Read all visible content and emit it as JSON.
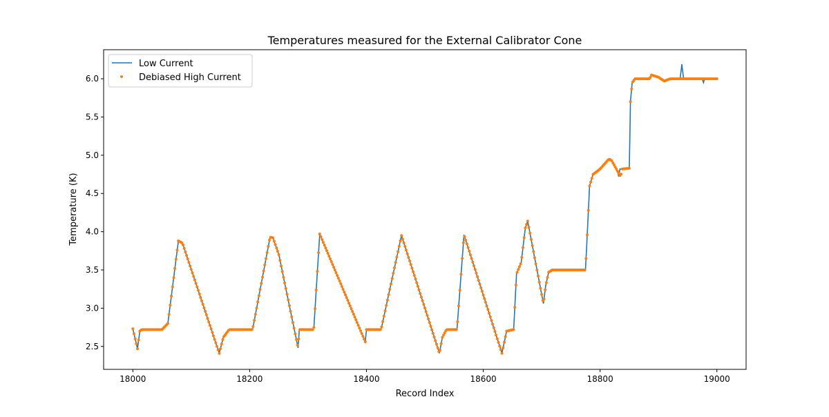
{
  "chart_data": {
    "type": "line",
    "title": "Temperatures measured for the External Calibrator Cone",
    "xlabel": "Record Index",
    "ylabel": "Temperature (K)",
    "xlim": [
      17950,
      19050
    ],
    "ylim": [
      2.2,
      6.38
    ],
    "xticks": [
      18000,
      18200,
      18400,
      18600,
      18800,
      19000
    ],
    "yticks": [
      2.5,
      3.0,
      3.5,
      4.0,
      4.5,
      5.0,
      5.5,
      6.0
    ],
    "ytick_labels": [
      "2.5",
      "3.0",
      "3.5",
      "4.0",
      "4.5",
      "5.0",
      "5.5",
      "6.0"
    ],
    "grid": false,
    "legend": {
      "placement": "top-left",
      "entries": [
        "Low Current",
        "Debiased High Current"
      ]
    },
    "series": [
      {
        "name": "Low Current",
        "style": "line",
        "color": "#1f77b4",
        "x": [
          18000,
          18008,
          18012,
          18015,
          18050,
          18060,
          18078,
          18085,
          18148,
          18155,
          18165,
          18205,
          18235,
          18240,
          18250,
          18283,
          18285,
          18308,
          18310,
          18320,
          18398,
          18400,
          18425,
          18460,
          18525,
          18530,
          18537,
          18555,
          18567,
          18632,
          18640,
          18652,
          18657,
          18665,
          18672,
          18676,
          18703,
          18707,
          18712,
          18718,
          18775,
          18777,
          18782,
          18788,
          18800,
          18815,
          18820,
          18830,
          18832,
          18834,
          18838,
          18850,
          18852,
          18855,
          18860,
          18885,
          18888,
          18900,
          18910,
          18920,
          18937,
          18940,
          18943,
          18975,
          18977,
          18979,
          19000
        ],
        "y": [
          2.73,
          2.47,
          2.7,
          2.72,
          2.72,
          2.8,
          3.88,
          3.85,
          2.41,
          2.62,
          2.72,
          2.72,
          3.93,
          3.92,
          3.7,
          2.48,
          2.72,
          2.72,
          2.75,
          3.97,
          2.56,
          2.72,
          2.72,
          3.95,
          2.41,
          2.62,
          2.72,
          2.72,
          3.96,
          2.41,
          2.7,
          2.72,
          3.45,
          3.6,
          4.05,
          4.14,
          3.06,
          3.3,
          3.47,
          3.5,
          3.5,
          3.8,
          4.6,
          4.75,
          4.82,
          4.95,
          4.93,
          4.78,
          4.72,
          4.82,
          4.82,
          4.83,
          5.7,
          5.95,
          6.0,
          6.0,
          6.05,
          6.02,
          5.97,
          6.0,
          6.0,
          6.19,
          6.0,
          6.0,
          5.95,
          6.0,
          6.0
        ]
      },
      {
        "name": "Debiased High Current",
        "style": "scatter",
        "color": "#ff7f0e",
        "x": [
          18000,
          18008,
          18012,
          18015,
          18050,
          18060,
          18078,
          18085,
          18148,
          18155,
          18165,
          18205,
          18235,
          18240,
          18250,
          18283,
          18285,
          18308,
          18310,
          18320,
          18398,
          18400,
          18425,
          18460,
          18525,
          18530,
          18537,
          18555,
          18567,
          18632,
          18640,
          18652,
          18657,
          18665,
          18672,
          18676,
          18703,
          18707,
          18712,
          18718,
          18775,
          18777,
          18782,
          18788,
          18800,
          18815,
          18820,
          18835,
          18838,
          18850,
          18852,
          18855,
          18860,
          18885,
          18888,
          18900,
          18910,
          18920,
          19000
        ],
        "y": [
          2.73,
          2.47,
          2.7,
          2.72,
          2.72,
          2.8,
          3.88,
          3.85,
          2.41,
          2.62,
          2.72,
          2.72,
          3.93,
          3.92,
          3.7,
          2.48,
          2.72,
          2.72,
          2.75,
          3.97,
          2.56,
          2.72,
          2.72,
          3.95,
          2.41,
          2.62,
          2.72,
          2.72,
          3.96,
          2.41,
          2.7,
          2.72,
          3.45,
          3.6,
          4.05,
          4.14,
          3.06,
          3.3,
          3.47,
          3.5,
          3.5,
          3.8,
          4.6,
          4.75,
          4.82,
          4.95,
          4.93,
          4.72,
          4.82,
          4.83,
          5.7,
          5.95,
          6.0,
          6.0,
          6.05,
          6.02,
          5.97,
          6.0,
          6.0
        ]
      }
    ]
  }
}
